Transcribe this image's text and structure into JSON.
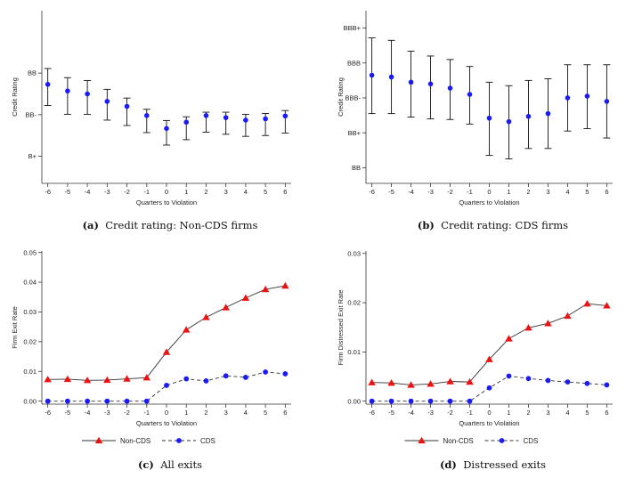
{
  "chart_data": [
    {
      "type": "scatter",
      "caption_label": "(a)",
      "caption_text": "Credit rating: Non-CDS firms",
      "xlabel": "Quarters to Violation",
      "ylabel": "Credit Rating",
      "x": [
        -6,
        -5,
        -4,
        -3,
        -2,
        -1,
        0,
        1,
        2,
        3,
        4,
        5,
        6
      ],
      "xlim": [
        -6.3,
        6.3
      ],
      "ylim": [
        10.35,
        14.5
      ],
      "ytick_values": [
        11,
        12,
        13
      ],
      "ytick_labels": [
        "B+",
        "BB-",
        "BB"
      ],
      "grid": false,
      "series": [
        {
          "y": [
            12.73,
            12.57,
            12.5,
            12.32,
            12.2,
            11.98,
            11.67,
            11.82,
            11.98,
            11.93,
            11.87,
            11.9,
            11.97
          ],
          "low": [
            12.22,
            12.01,
            12.01,
            11.87,
            11.74,
            11.57,
            11.27,
            11.4,
            11.58,
            11.53,
            11.48,
            11.5,
            11.56
          ],
          "high": [
            13.11,
            12.89,
            12.82,
            12.61,
            12.4,
            12.13,
            11.86,
            11.95,
            12.06,
            12.06,
            12.01,
            12.03,
            12.1
          ],
          "color": "#1a1aff"
        }
      ]
    },
    {
      "type": "scatter",
      "caption_label": "(b)",
      "caption_text": "Credit rating: CDS firms",
      "xlabel": "Quarters to Violation",
      "ylabel": "Credit Rating",
      "x": [
        -6,
        -5,
        -4,
        -3,
        -2,
        -1,
        0,
        1,
        2,
        3,
        4,
        5,
        6
      ],
      "xlim": [
        -6.3,
        6.3
      ],
      "ylim": [
        11.55,
        16.5
      ],
      "ytick_values": [
        12,
        13,
        14,
        15,
        16
      ],
      "ytick_labels": [
        "BB",
        "BB+",
        "BBB-",
        "BBB",
        "BBB+"
      ],
      "grid": false,
      "series": [
        {
          "y": [
            14.65,
            14.6,
            14.45,
            14.4,
            14.28,
            14.1,
            13.42,
            13.32,
            13.47,
            13.55,
            14.0,
            14.05,
            13.9
          ],
          "low": [
            13.55,
            13.55,
            13.45,
            13.4,
            13.38,
            13.25,
            12.35,
            12.25,
            12.55,
            12.55,
            13.05,
            13.12,
            12.85
          ],
          "high": [
            15.72,
            15.65,
            15.34,
            15.2,
            15.1,
            14.9,
            14.45,
            14.35,
            14.5,
            14.55,
            14.95,
            14.95,
            14.95
          ],
          "color": "#1a1aff"
        }
      ]
    },
    {
      "type": "line",
      "caption_label": "(c)",
      "caption_text": "All exits",
      "xlabel": "Quarters to Violation",
      "ylabel": "Firm Exit Rate",
      "x": [
        -6,
        -5,
        -4,
        -3,
        -2,
        -1,
        0,
        1,
        2,
        3,
        4,
        5,
        6
      ],
      "xlim": [
        -6.3,
        6.3
      ],
      "ylim": [
        -0.001,
        0.0505
      ],
      "ytick_values": [
        0,
        0.01,
        0.02,
        0.03,
        0.04,
        0.05
      ],
      "ytick_labels": [
        "0.00",
        "0.01",
        "0.02",
        "0.03",
        "0.04",
        "0.05"
      ],
      "grid": false,
      "legend": "bottom",
      "series": [
        {
          "name": "Non-CDS",
          "values": [
            0.0073,
            0.0074,
            0.007,
            0.0071,
            0.0075,
            0.0079,
            0.0165,
            0.024,
            0.0282,
            0.0315,
            0.0347,
            0.0376,
            0.0388
          ],
          "color": "#ee1111",
          "marker": "triangle",
          "line": "solid"
        },
        {
          "name": "CDS",
          "values": [
            0.0,
            0.0,
            0.0,
            0.0,
            0.0,
            0.0,
            0.0053,
            0.0075,
            0.0068,
            0.0085,
            0.008,
            0.0098,
            0.0092
          ],
          "color": "#1a1aff",
          "marker": "circle",
          "line": "dashed"
        }
      ]
    },
    {
      "type": "line",
      "caption_label": "(d)",
      "caption_text": "Distressed exits",
      "xlabel": "Quarters to Violation",
      "ylabel": "Firm Distressed Exit Rate",
      "x": [
        -6,
        -5,
        -4,
        -3,
        -2,
        -1,
        0,
        1,
        2,
        3,
        4,
        5,
        6
      ],
      "xlim": [
        -6.3,
        6.3
      ],
      "ylim": [
        -0.0006,
        0.0305
      ],
      "ytick_values": [
        0,
        0.01,
        0.02,
        0.03
      ],
      "ytick_labels": [
        "0.00",
        "0.01",
        "0.02",
        "0.03"
      ],
      "grid": false,
      "legend": "bottom",
      "series": [
        {
          "name": "Non-CDS",
          "values": [
            0.0038,
            0.0037,
            0.0033,
            0.0035,
            0.004,
            0.0039,
            0.0085,
            0.0127,
            0.0149,
            0.0158,
            0.0173,
            0.0198,
            0.0194
          ],
          "color": "#ee1111",
          "marker": "triangle",
          "line": "solid"
        },
        {
          "name": "CDS",
          "values": [
            0.0,
            0.0,
            0.0,
            0.0,
            0.0,
            0.0,
            0.0027,
            0.0051,
            0.0046,
            0.0042,
            0.0039,
            0.0036,
            0.0033
          ],
          "color": "#1a1aff",
          "marker": "circle",
          "line": "dashed"
        }
      ]
    }
  ]
}
